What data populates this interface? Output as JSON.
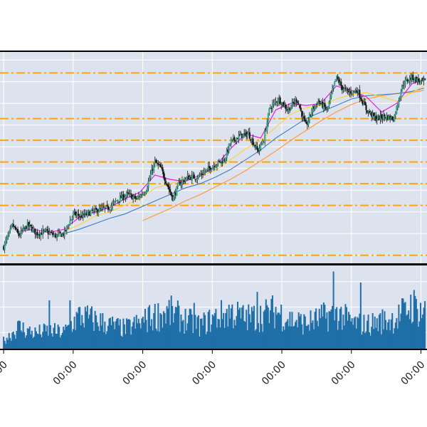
{
  "chart_data": {
    "type": "candlestick",
    "title": "",
    "xlabel": "",
    "ylabel": "",
    "grid": true,
    "background": "#dde3ee",
    "colors": {
      "up_body": "#3ea98f",
      "down_body": "#1a1a1a",
      "wick": "#1a1a1a",
      "ma_fast": "#e619e6",
      "ma_mid": "#ffd21e",
      "ma_slow": "#3a7dc4",
      "ma_long": "#ff9a3c",
      "hlines": "#ffa500",
      "volume": "#1f6fa8"
    },
    "price_ylim": [
      0.6,
      10.4
    ],
    "volume_ylim": [
      0,
      10
    ],
    "x_range": [
      -1.2,
      140
    ],
    "x_tick_positions": [
      0,
      23,
      46,
      69,
      92,
      115,
      138
    ],
    "x_tick_labels": [
      "00:00",
      "00:00",
      "00:00",
      "00:00",
      "00:00",
      "00:00",
      "00:00"
    ],
    "hlines": [
      1.0,
      3.3,
      4.3,
      5.3,
      6.3,
      7.3,
      9.4
    ],
    "price_points": [
      [
        0,
        1.4
      ],
      [
        3,
        2.4
      ],
      [
        5,
        1.9
      ],
      [
        8,
        2.4
      ],
      [
        11,
        2.0
      ],
      [
        14,
        2.1
      ],
      [
        17,
        1.9
      ],
      [
        20,
        2.0
      ],
      [
        23,
        2.9
      ],
      [
        26,
        2.8
      ],
      [
        29,
        3.0
      ],
      [
        32,
        3.1
      ],
      [
        35,
        3.2
      ],
      [
        38,
        3.6
      ],
      [
        41,
        3.8
      ],
      [
        44,
        3.6
      ],
      [
        47,
        4.0
      ],
      [
        50,
        5.3
      ],
      [
        52,
        5.0
      ],
      [
        54,
        4.3
      ],
      [
        56,
        3.6
      ],
      [
        58,
        4.3
      ],
      [
        61,
        4.6
      ],
      [
        64,
        4.6
      ],
      [
        67,
        4.9
      ],
      [
        70,
        5.2
      ],
      [
        73,
        5.4
      ],
      [
        75,
        6.2
      ],
      [
        78,
        6.5
      ],
      [
        81,
        6.6
      ],
      [
        84,
        5.8
      ],
      [
        86,
        6.3
      ],
      [
        88,
        7.8
      ],
      [
        91,
        8.2
      ],
      [
        94,
        7.7
      ],
      [
        97,
        8.2
      ],
      [
        100,
        6.9
      ],
      [
        102,
        7.7
      ],
      [
        104,
        8.1
      ],
      [
        107,
        7.7
      ],
      [
        110,
        9.2
      ],
      [
        112,
        8.7
      ],
      [
        114,
        8.5
      ],
      [
        117,
        8.6
      ],
      [
        120,
        7.7
      ],
      [
        123,
        7.3
      ],
      [
        126,
        7.4
      ],
      [
        129,
        7.3
      ],
      [
        132,
        8.9
      ],
      [
        135,
        9.2
      ],
      [
        138,
        9.0
      ]
    ],
    "ma_fast": [
      [
        5,
        2.1
      ],
      [
        10,
        2.2
      ],
      [
        15,
        2.05
      ],
      [
        20,
        2.2
      ],
      [
        25,
        2.75
      ],
      [
        30,
        3.0
      ],
      [
        35,
        3.2
      ],
      [
        40,
        3.6
      ],
      [
        45,
        3.9
      ],
      [
        50,
        4.7
      ],
      [
        55,
        4.5
      ],
      [
        60,
        4.4
      ],
      [
        65,
        4.7
      ],
      [
        70,
        5.1
      ],
      [
        75,
        5.9
      ],
      [
        80,
        6.6
      ],
      [
        85,
        6.4
      ],
      [
        90,
        7.7
      ],
      [
        95,
        8.0
      ],
      [
        100,
        7.9
      ],
      [
        105,
        8.0
      ],
      [
        110,
        8.8
      ],
      [
        115,
        8.6
      ],
      [
        120,
        8.3
      ],
      [
        125,
        7.6
      ],
      [
        130,
        8.0
      ],
      [
        135,
        8.9
      ],
      [
        139,
        9.1
      ]
    ],
    "ma_mid": [
      [
        20,
        2.1
      ],
      [
        25,
        2.4
      ],
      [
        30,
        2.8
      ],
      [
        35,
        3.0
      ],
      [
        40,
        3.3
      ],
      [
        45,
        3.6
      ],
      [
        50,
        4.1
      ],
      [
        55,
        4.3
      ],
      [
        60,
        4.5
      ],
      [
        65,
        4.65
      ],
      [
        70,
        4.9
      ],
      [
        75,
        5.4
      ],
      [
        80,
        5.9
      ],
      [
        85,
        6.3
      ],
      [
        90,
        6.9
      ],
      [
        95,
        7.5
      ],
      [
        100,
        7.8
      ],
      [
        105,
        7.9
      ],
      [
        110,
        8.2
      ],
      [
        115,
        8.4
      ],
      [
        120,
        8.5
      ],
      [
        125,
        8.3
      ],
      [
        130,
        8.1
      ],
      [
        135,
        8.5
      ],
      [
        139,
        8.8
      ]
    ],
    "ma_slow": [
      [
        20,
        2.0
      ],
      [
        25,
        2.2
      ],
      [
        30,
        2.45
      ],
      [
        35,
        2.7
      ],
      [
        40,
        2.9
      ],
      [
        45,
        3.2
      ],
      [
        50,
        3.5
      ],
      [
        55,
        3.8
      ],
      [
        60,
        4.1
      ],
      [
        65,
        4.3
      ],
      [
        70,
        4.6
      ],
      [
        75,
        4.95
      ],
      [
        80,
        5.4
      ],
      [
        85,
        5.85
      ],
      [
        90,
        6.4
      ],
      [
        95,
        6.85
      ],
      [
        100,
        7.3
      ],
      [
        105,
        7.6
      ],
      [
        110,
        7.9
      ],
      [
        115,
        8.2
      ],
      [
        120,
        8.35
      ],
      [
        125,
        8.4
      ],
      [
        130,
        8.45
      ],
      [
        135,
        8.55
      ],
      [
        139,
        8.7
      ]
    ],
    "ma_long": [
      [
        46,
        2.6
      ],
      [
        50,
        2.85
      ],
      [
        55,
        3.15
      ],
      [
        60,
        3.5
      ],
      [
        65,
        3.8
      ],
      [
        70,
        4.15
      ],
      [
        75,
        4.5
      ],
      [
        80,
        4.9
      ],
      [
        85,
        5.35
      ],
      [
        90,
        5.8
      ],
      [
        95,
        6.3
      ],
      [
        100,
        6.75
      ],
      [
        105,
        7.2
      ],
      [
        110,
        7.6
      ],
      [
        115,
        7.95
      ],
      [
        120,
        8.2
      ],
      [
        125,
        8.35
      ],
      [
        130,
        8.45
      ],
      [
        135,
        8.5
      ],
      [
        139,
        8.6
      ]
    ],
    "volume_profile": [
      [
        0,
        1.2
      ],
      [
        5,
        3.0
      ],
      [
        10,
        2.2
      ],
      [
        15,
        2.5
      ],
      [
        20,
        2.3
      ],
      [
        25,
        4.5
      ],
      [
        30,
        4.0
      ],
      [
        35,
        3.3
      ],
      [
        40,
        2.8
      ],
      [
        45,
        3.5
      ],
      [
        50,
        4.5
      ],
      [
        55,
        5.0
      ],
      [
        60,
        4.0
      ],
      [
        65,
        3.2
      ],
      [
        70,
        4.3
      ],
      [
        75,
        5.0
      ],
      [
        80,
        4.2
      ],
      [
        85,
        4.5
      ],
      [
        90,
        5.2
      ],
      [
        95,
        4.0
      ],
      [
        100,
        3.5
      ],
      [
        105,
        4.2
      ],
      [
        110,
        5.0
      ],
      [
        115,
        3.6
      ],
      [
        120,
        3.3
      ],
      [
        125,
        3.8
      ],
      [
        130,
        4.2
      ],
      [
        135,
        6.0
      ],
      [
        139,
        5.0
      ]
    ],
    "volume_spikes": [
      [
        15,
        5.8
      ],
      [
        22,
        5.8
      ],
      [
        48,
        5.0
      ],
      [
        63,
        5.5
      ],
      [
        84,
        6.8
      ],
      [
        109,
        9.2
      ],
      [
        118,
        7.9
      ],
      [
        133,
        5.6
      ]
    ]
  }
}
